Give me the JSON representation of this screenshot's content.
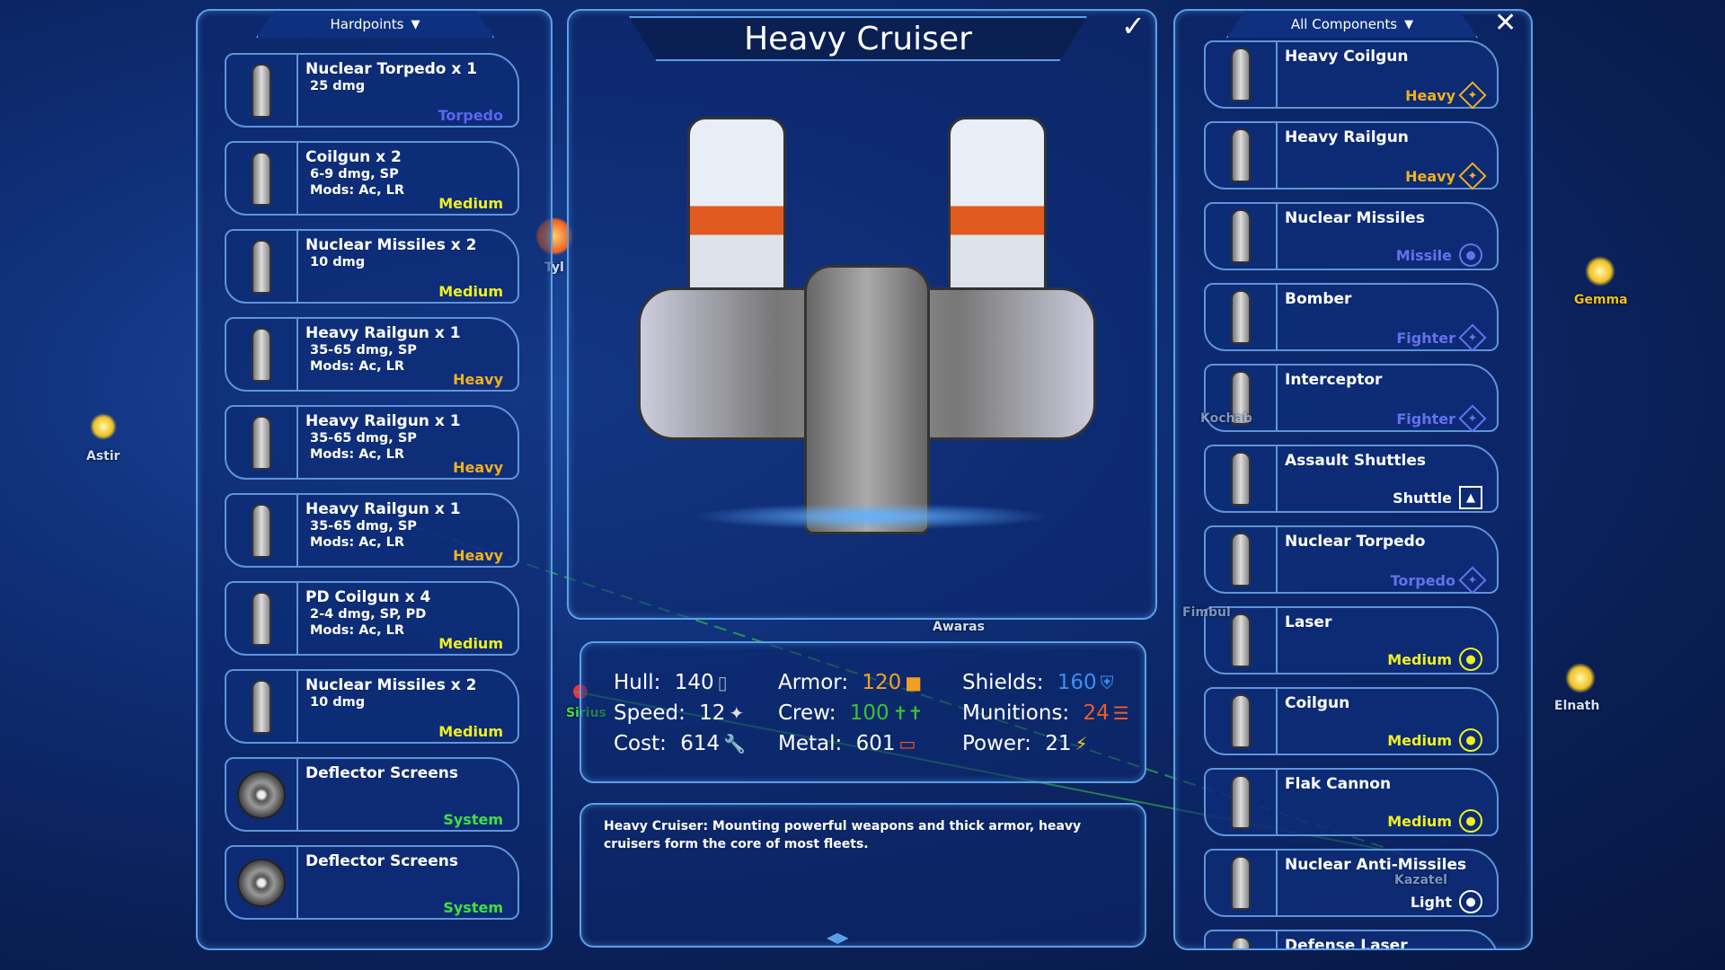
{
  "map": {
    "labels": [
      "Astir",
      "Gemma",
      "Elnath",
      "Tyl",
      "Sirius",
      "Awaras",
      "Fimbul",
      "Kochab",
      "Kazatel"
    ]
  },
  "left_panel": {
    "header": "Hardpoints",
    "cards": [
      {
        "title": "Nuclear Torpedo x 1",
        "lines": [
          "25 dmg"
        ],
        "tag": "Torpedo",
        "color": "#5a66f0"
      },
      {
        "title": "Coilgun x 2",
        "lines": [
          "6-9 dmg, SP",
          "Mods: Ac, LR"
        ],
        "tag": "Medium",
        "color": "#f0f020"
      },
      {
        "title": "Nuclear Missiles x 2",
        "lines": [
          "10 dmg"
        ],
        "tag": "Medium",
        "color": "#f0f020"
      },
      {
        "title": "Heavy Railgun x 1",
        "lines": [
          "35-65 dmg, SP",
          "Mods: Ac, LR"
        ],
        "tag": "Heavy",
        "color": "#f0b020"
      },
      {
        "title": "Heavy Railgun x 1",
        "lines": [
          "35-65 dmg, SP",
          "Mods: Ac, LR"
        ],
        "tag": "Heavy",
        "color": "#f0b020"
      },
      {
        "title": "Heavy Railgun x 1",
        "lines": [
          "35-65 dmg, SP",
          "Mods: Ac, LR"
        ],
        "tag": "Heavy",
        "color": "#f0b020"
      },
      {
        "title": "PD Coilgun x 4",
        "lines": [
          "2-4 dmg, SP, PD",
          "Mods: Ac, LR"
        ],
        "tag": "Medium",
        "color": "#f0f020"
      },
      {
        "title": "Nuclear Missiles x 2",
        "lines": [
          "10 dmg"
        ],
        "tag": "Medium",
        "color": "#f0f020"
      },
      {
        "title": "Deflector Screens",
        "lines": [],
        "tag": "System",
        "color": "#40e040"
      },
      {
        "title": "Deflector Screens",
        "lines": [],
        "tag": "System",
        "color": "#40e040"
      }
    ]
  },
  "center": {
    "title": "Heavy Cruiser",
    "confirm_icon": "checkmark-icon",
    "stats": {
      "hull": {
        "label": "Hull:",
        "value": "140",
        "color": "#ffffff"
      },
      "speed": {
        "label": "Speed:",
        "value": "12",
        "color": "#ffffff"
      },
      "cost": {
        "label": "Cost:",
        "value": "614",
        "color": "#ffffff"
      },
      "armor": {
        "label": "Armor:",
        "value": "120",
        "color": "#f0a020"
      },
      "crew": {
        "label": "Crew:",
        "value": "100",
        "color": "#40c030"
      },
      "metal": {
        "label": "Metal:",
        "value": "601",
        "color": "#ffffff"
      },
      "shields": {
        "label": "Shields:",
        "value": "160",
        "color": "#3a90f0"
      },
      "munitions": {
        "label": "Munitions:",
        "value": "24",
        "color": "#f05a30"
      },
      "power": {
        "label": "Power:",
        "value": "21",
        "color": "#ffffff"
      }
    },
    "description": "Heavy Cruiser: Mounting powerful weapons and thick armor, heavy cruisers form the core of most fleets."
  },
  "right_panel": {
    "header": "All Components",
    "close_icon": "close-icon",
    "cards": [
      {
        "title": "Heavy Coilgun",
        "tag": "Heavy",
        "color": "#f0b020",
        "badge": "diamond"
      },
      {
        "title": "Heavy Railgun",
        "tag": "Heavy",
        "color": "#f0b020",
        "badge": "diamond"
      },
      {
        "title": "Nuclear Missiles",
        "tag": "Missile",
        "color": "#6670ee",
        "badge": "circle"
      },
      {
        "title": "Bomber",
        "tag": "Fighter",
        "color": "#6670ee",
        "badge": "diamond"
      },
      {
        "title": "Interceptor",
        "tag": "Fighter",
        "color": "#6670ee",
        "badge": "diamond"
      },
      {
        "title": "Assault Shuttles",
        "tag": "Shuttle",
        "color": "#ffffff",
        "badge": "square"
      },
      {
        "title": "Nuclear Torpedo",
        "tag": "Torpedo",
        "color": "#6670ee",
        "badge": "diamond"
      },
      {
        "title": "Laser",
        "tag": "Medium",
        "color": "#f0f020",
        "badge": "circle"
      },
      {
        "title": "Coilgun",
        "tag": "Medium",
        "color": "#f0f020",
        "badge": "circle"
      },
      {
        "title": "Flak Cannon",
        "tag": "Medium",
        "color": "#f0f020",
        "badge": "circle"
      },
      {
        "title": "Nuclear Anti-Missiles",
        "tag": "Light",
        "color": "#ffffff",
        "badge": "circle"
      },
      {
        "title": "Defense Laser",
        "tag": "",
        "color": "#ffffff",
        "badge": ""
      }
    ]
  }
}
